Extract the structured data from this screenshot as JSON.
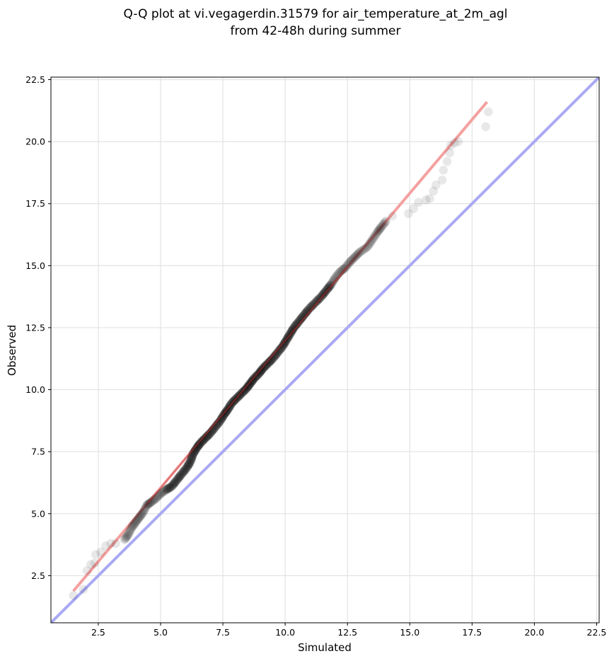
{
  "chart_data": {
    "type": "scatter",
    "title_lines": [
      "Q-Q plot at vi.vegagerdin.31579 for air_temperature_at_2m_agl",
      "from 42-48h during summer"
    ],
    "xlabel": "Simulated",
    "ylabel": "Observed",
    "xlim": [
      0.6,
      22.6
    ],
    "ylim": [
      0.6,
      22.6
    ],
    "xticks": [
      "2.5",
      "5.0",
      "7.5",
      "10.0",
      "12.5",
      "15.0",
      "17.5",
      "20.0",
      "22.5"
    ],
    "yticks": [
      "2.5",
      "5.0",
      "7.5",
      "10.0",
      "12.5",
      "15.0",
      "17.5",
      "20.0",
      "22.5"
    ],
    "grid": true,
    "series": [
      {
        "kind": "points",
        "color": "#000000",
        "opacity": 0.09,
        "points": [
          [
            1.5,
            1.7
          ],
          [
            1.9,
            1.95
          ],
          [
            2.05,
            2.7
          ],
          [
            2.2,
            2.95
          ],
          [
            2.35,
            3.0
          ],
          [
            2.4,
            3.35
          ],
          [
            2.6,
            3.45
          ],
          [
            2.8,
            3.7
          ],
          [
            3.0,
            3.8
          ],
          [
            3.2,
            3.8
          ],
          [
            3.55,
            3.95
          ],
          [
            3.7,
            4.15
          ],
          [
            3.85,
            4.45
          ],
          [
            4.0,
            4.65
          ],
          [
            4.15,
            4.85
          ],
          [
            4.3,
            5.05
          ],
          [
            4.45,
            5.35
          ],
          [
            4.6,
            5.45
          ],
          [
            4.8,
            5.6
          ],
          [
            5.0,
            5.8
          ],
          [
            5.2,
            5.95
          ],
          [
            5.45,
            6.1
          ],
          [
            5.65,
            6.35
          ],
          [
            5.85,
            6.6
          ],
          [
            6.05,
            6.85
          ],
          [
            6.2,
            7.1
          ],
          [
            6.3,
            7.4
          ],
          [
            6.45,
            7.65
          ],
          [
            6.6,
            7.85
          ],
          [
            6.8,
            8.05
          ],
          [
            7.0,
            8.25
          ],
          [
            7.2,
            8.5
          ],
          [
            7.4,
            8.75
          ],
          [
            7.55,
            9.0
          ],
          [
            7.7,
            9.2
          ],
          [
            7.85,
            9.45
          ],
          [
            8.05,
            9.65
          ],
          [
            8.25,
            9.85
          ],
          [
            8.45,
            10.05
          ],
          [
            8.6,
            10.25
          ],
          [
            8.75,
            10.45
          ],
          [
            8.95,
            10.65
          ],
          [
            9.1,
            10.85
          ],
          [
            9.3,
            11.05
          ],
          [
            9.5,
            11.25
          ],
          [
            9.7,
            11.5
          ],
          [
            9.9,
            11.75
          ],
          [
            10.05,
            12.0
          ],
          [
            10.2,
            12.25
          ],
          [
            10.35,
            12.5
          ],
          [
            10.55,
            12.75
          ],
          [
            10.75,
            13.0
          ],
          [
            10.95,
            13.25
          ],
          [
            11.2,
            13.5
          ],
          [
            11.45,
            13.75
          ],
          [
            11.65,
            14.0
          ],
          [
            11.85,
            14.25
          ],
          [
            12.0,
            14.5
          ],
          [
            12.2,
            14.75
          ],
          [
            12.4,
            14.9
          ],
          [
            12.6,
            15.15
          ],
          [
            12.8,
            15.35
          ],
          [
            13.0,
            15.55
          ],
          [
            13.3,
            15.75
          ],
          [
            13.5,
            16.05
          ],
          [
            13.7,
            16.35
          ],
          [
            13.85,
            16.55
          ],
          [
            14.05,
            16.8
          ],
          [
            14.3,
            17.0
          ],
          [
            14.95,
            17.1
          ],
          [
            15.15,
            17.3
          ],
          [
            15.35,
            17.55
          ],
          [
            15.65,
            17.65
          ],
          [
            15.8,
            17.7
          ],
          [
            15.95,
            18.0
          ],
          [
            16.05,
            18.25
          ],
          [
            16.3,
            18.45
          ],
          [
            16.35,
            18.85
          ],
          [
            16.5,
            19.2
          ],
          [
            16.6,
            19.55
          ],
          [
            16.65,
            19.85
          ],
          [
            16.8,
            19.95
          ],
          [
            16.95,
            20.0
          ],
          [
            18.05,
            20.6
          ],
          [
            18.15,
            21.2
          ]
        ]
      },
      {
        "kind": "line",
        "name": "",
        "color": "#f4a0a0",
        "points": [
          [
            1.5,
            1.88
          ],
          [
            18.1,
            21.6
          ]
        ]
      },
      {
        "kind": "line",
        "name": "",
        "color": "#a9a9f3",
        "points": [
          [
            0.6,
            0.6
          ],
          [
            22.6,
            22.6
          ]
        ]
      }
    ]
  }
}
